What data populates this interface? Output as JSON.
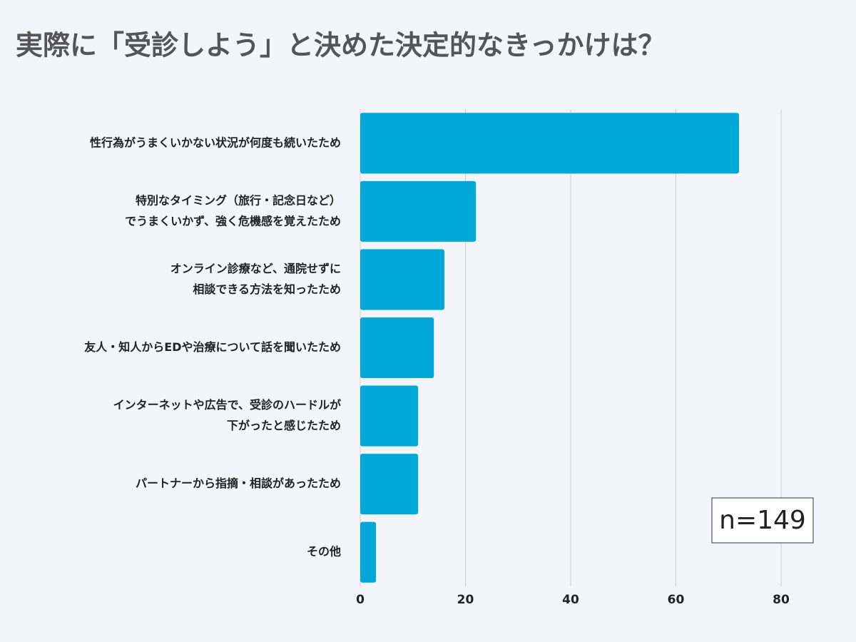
{
  "chart_data": {
    "type": "barh",
    "title": "実際に「受診しよう」と決めた決定的なきっかけは？",
    "categories": [
      [
        "性行為がうまくいかない状況が何度も続いたため"
      ],
      [
        "特別なタイミング（旅行・記念日など）",
        "でうまくいかず、強く危機感を覚えたため"
      ],
      [
        "オンライン診療など、通院せずに",
        "相談できる方法を知ったため"
      ],
      [
        "友人・知人からEDや治療について話を聞いたため"
      ],
      [
        "インターネットや広告で、受診のハードルが",
        "下がったと感じたため"
      ],
      [
        "パートナーから指摘・相談があったため"
      ],
      [
        "その他"
      ]
    ],
    "values": [
      72,
      22,
      16,
      14,
      11,
      11,
      3
    ],
    "color": "#02a9d8",
    "xlim": [
      0,
      80
    ],
    "xticks": [
      0,
      20,
      40,
      60,
      80
    ],
    "grid": true,
    "annotation": "n=149"
  }
}
